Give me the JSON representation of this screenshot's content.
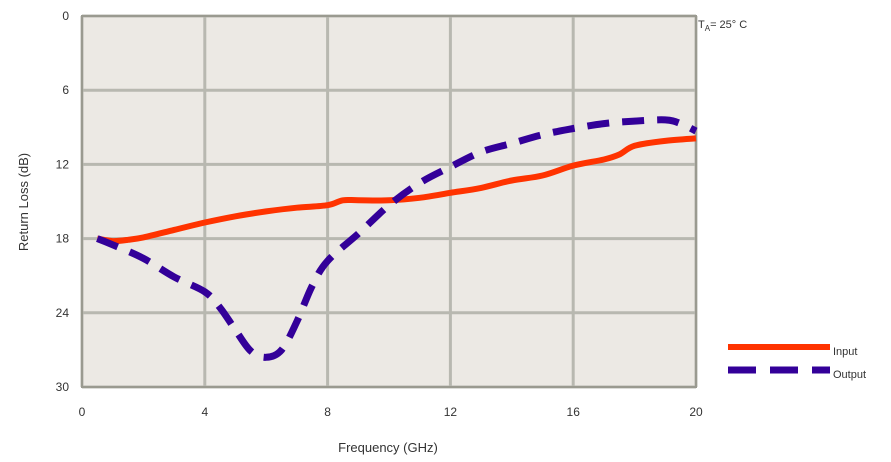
{
  "chart_data": {
    "type": "line",
    "title": "",
    "xlabel": "Frequency (GHz)",
    "ylabel": "Return Loss (dB)",
    "xlim": [
      0,
      20
    ],
    "ylim": [
      0,
      30
    ],
    "y_inverted": true,
    "grid": true,
    "legend_placement": "bottom-right",
    "x_ticks": [
      0,
      4,
      8,
      12,
      16,
      20
    ],
    "y_ticks": [
      0,
      6,
      12,
      18,
      24,
      30
    ],
    "annotation": {
      "prefix": "T",
      "subscript": "A",
      "text": "= 25° C"
    },
    "colors": {
      "plot_bg": "#ece9e4",
      "grid": "#b8b8b0",
      "frame": "#9a9a90",
      "input": "#ff3300",
      "output": "#330099"
    },
    "series": [
      {
        "name": "Input",
        "style": "solid",
        "x": [
          0.5,
          1,
          1.5,
          2,
          3,
          4,
          5,
          6,
          7,
          8,
          8.5,
          9,
          10,
          11,
          12,
          13,
          14,
          15,
          16,
          17,
          17.5,
          18,
          19,
          20
        ],
        "y": [
          18.0,
          18.2,
          18.1,
          17.9,
          17.3,
          16.7,
          16.2,
          15.8,
          15.5,
          15.3,
          14.9,
          14.9,
          14.9,
          14.7,
          14.3,
          13.9,
          13.3,
          12.9,
          12.1,
          11.6,
          11.2,
          10.5,
          10.1,
          9.9
        ]
      },
      {
        "name": "Output",
        "style": "dashed",
        "x": [
          0.5,
          1,
          2,
          3,
          4,
          4.5,
          5,
          5.5,
          6,
          6.5,
          7,
          7.5,
          8,
          9,
          10,
          11,
          12,
          13,
          14,
          15,
          16,
          17,
          18,
          19,
          19.5,
          20
        ],
        "y": [
          18.0,
          18.5,
          19.6,
          21.1,
          22.3,
          23.6,
          25.4,
          27.1,
          27.6,
          27.0,
          24.7,
          21.8,
          19.8,
          17.6,
          15.3,
          13.5,
          12.2,
          11.0,
          10.3,
          9.6,
          9.1,
          8.7,
          8.5,
          8.4,
          8.7,
          9.3
        ]
      }
    ]
  }
}
